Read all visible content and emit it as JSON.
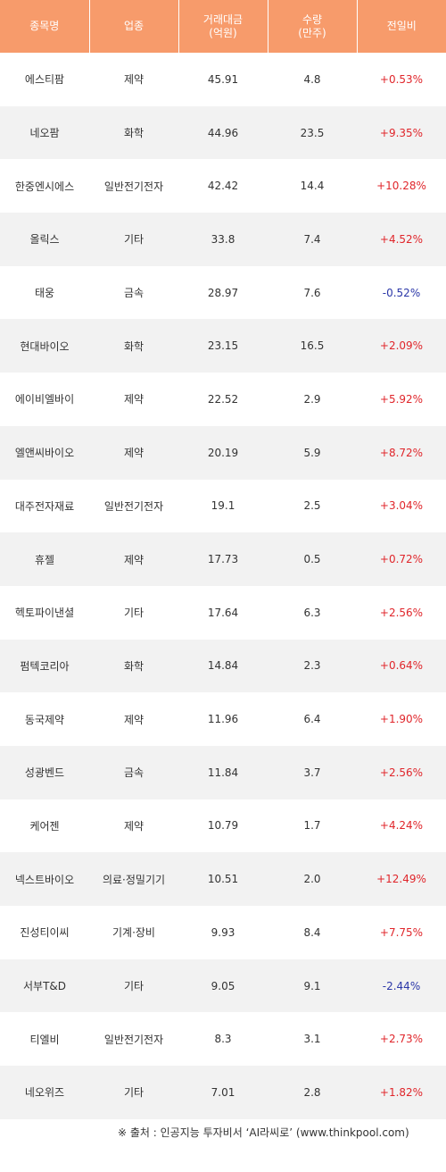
{
  "headers": {
    "name": "종목명",
    "sector": "업종",
    "amount": "거래대금\n(억원)",
    "volume": "수량\n(만주)",
    "change": "전일비"
  },
  "rows": [
    {
      "name": "에스티팜",
      "sector": "제약",
      "amount": "45.91",
      "volume": "4.8",
      "change": "+0.53%",
      "dir": "up"
    },
    {
      "name": "네오팜",
      "sector": "화학",
      "amount": "44.96",
      "volume": "23.5",
      "change": "+9.35%",
      "dir": "up"
    },
    {
      "name": "한중엔시에스",
      "sector": "일반전기전자",
      "amount": "42.42",
      "volume": "14.4",
      "change": "+10.28%",
      "dir": "up"
    },
    {
      "name": "올릭스",
      "sector": "기타",
      "amount": "33.8",
      "volume": "7.4",
      "change": "+4.52%",
      "dir": "up"
    },
    {
      "name": "태웅",
      "sector": "금속",
      "amount": "28.97",
      "volume": "7.6",
      "change": "-0.52%",
      "dir": "down"
    },
    {
      "name": "현대바이오",
      "sector": "화학",
      "amount": "23.15",
      "volume": "16.5",
      "change": "+2.09%",
      "dir": "up"
    },
    {
      "name": "에이비엘바이",
      "sector": "제약",
      "amount": "22.52",
      "volume": "2.9",
      "change": "+5.92%",
      "dir": "up"
    },
    {
      "name": "엘앤씨바이오",
      "sector": "제약",
      "amount": "20.19",
      "volume": "5.9",
      "change": "+8.72%",
      "dir": "up"
    },
    {
      "name": "대주전자재료",
      "sector": "일반전기전자",
      "amount": "19.1",
      "volume": "2.5",
      "change": "+3.04%",
      "dir": "up"
    },
    {
      "name": "휴젤",
      "sector": "제약",
      "amount": "17.73",
      "volume": "0.5",
      "change": "+0.72%",
      "dir": "up"
    },
    {
      "name": "헥토파이낸셜",
      "sector": "기타",
      "amount": "17.64",
      "volume": "6.3",
      "change": "+2.56%",
      "dir": "up"
    },
    {
      "name": "펌텍코리아",
      "sector": "화학",
      "amount": "14.84",
      "volume": "2.3",
      "change": "+0.64%",
      "dir": "up"
    },
    {
      "name": "동국제약",
      "sector": "제약",
      "amount": "11.96",
      "volume": "6.4",
      "change": "+1.90%",
      "dir": "up"
    },
    {
      "name": "성광벤드",
      "sector": "금속",
      "amount": "11.84",
      "volume": "3.7",
      "change": "+2.56%",
      "dir": "up"
    },
    {
      "name": "케어젠",
      "sector": "제약",
      "amount": "10.79",
      "volume": "1.7",
      "change": "+4.24%",
      "dir": "up"
    },
    {
      "name": "넥스트바이오",
      "sector": "의료·정밀기기",
      "amount": "10.51",
      "volume": "2.0",
      "change": "+12.49%",
      "dir": "up"
    },
    {
      "name": "진성티이씨",
      "sector": "기계·장비",
      "amount": "9.93",
      "volume": "8.4",
      "change": "+7.75%",
      "dir": "up"
    },
    {
      "name": "서부T&D",
      "sector": "기타",
      "amount": "9.05",
      "volume": "9.1",
      "change": "-2.44%",
      "dir": "down"
    },
    {
      "name": "티엘비",
      "sector": "일반전기전자",
      "amount": "8.3",
      "volume": "3.1",
      "change": "+2.73%",
      "dir": "up"
    },
    {
      "name": "네오위즈",
      "sector": "기타",
      "amount": "7.01",
      "volume": "2.8",
      "change": "+1.82%",
      "dir": "up"
    }
  ],
  "source": "※ 출처 : 인공지능 투자비서 ‘AI라씨로’ (www.thinkpool.com)",
  "colors": {
    "header_bg": "#f79b6b",
    "up": "#e0262b",
    "down": "#2b37a8",
    "stripe": "#f2f2f2"
  }
}
